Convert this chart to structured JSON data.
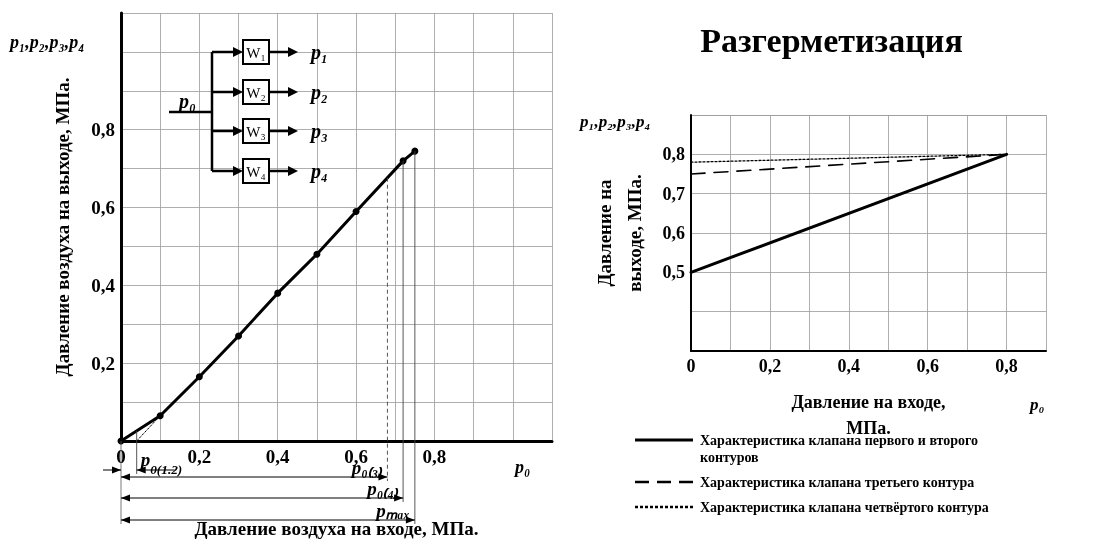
{
  "chart_data": [
    {
      "type": "line",
      "xlabel": "Давление воздуха на входе, МПа.",
      "ylabel": "Давление воздуха на выходе, МПа.",
      "x": [
        0,
        0.1,
        0.2,
        0.3,
        0.4,
        0.5,
        0.6,
        0.72,
        0.75
      ],
      "series": [
        {
          "color": "#000000",
          "values": [
            0,
            0.065,
            0.165,
            0.27,
            0.38,
            0.48,
            0.59,
            0.72,
            0.745
          ]
        },
        {
          "color": "#000000",
          "x": [
            0.04,
            0.1
          ],
          "values": [
            0,
            0.065
          ],
          "line_style": "dotted",
          "marker": "none"
        }
      ],
      "marker": "circle",
      "line_style": "solid",
      "grid": true,
      "xlim": [
        0,
        1.1
      ],
      "ylim": [
        0,
        1.1
      ],
      "xticks": [
        0,
        {
          "value": 0.1,
          "label": null
        },
        {
          "value": 0.2,
          "label": "0,2"
        },
        {
          "value": 0.3,
          "label": null
        },
        {
          "value": 0.4,
          "label": "0,4"
        },
        {
          "value": 0.5,
          "label": null
        },
        {
          "value": 0.6,
          "label": "0,6"
        },
        {
          "value": 0.7,
          "label": null
        },
        {
          "value": 0.8,
          "label": "0,8"
        },
        {
          "value": 0.9,
          "label": null
        },
        {
          "value": 1.0,
          "label": null
        },
        {
          "value": 1.1,
          "label": null
        }
      ],
      "yticks": [
        {
          "value": 0,
          "label": null
        },
        {
          "value": 0.1,
          "label": null
        },
        {
          "value": 0.2,
          "label": "0,2"
        },
        {
          "value": 0.3,
          "label": null
        },
        {
          "value": 0.4,
          "label": "0,4"
        },
        {
          "value": 0.5,
          "label": null
        },
        {
          "value": 0.6,
          "label": "0,6"
        },
        {
          "value": 0.7,
          "label": null
        },
        {
          "value": 0.8,
          "label": "0,8"
        },
        {
          "value": 0.9,
          "label": null
        },
        {
          "value": 1.0,
          "label": null
        },
        {
          "value": 1.1,
          "label": null
        }
      ],
      "ref_lines": [
        {
          "axis": "x",
          "value": 0.04,
          "label": "p$_{0(1.2)}$"
        },
        {
          "axis": "x",
          "value": 0.68,
          "label": "p₀₍₃₎",
          "line_style": "dashed"
        },
        {
          "axis": "x",
          "value": 0.72,
          "label": "p₀₍₄₎"
        },
        {
          "axis": "x",
          "value": 0.75,
          "label": "pₘₐₓ"
        }
      ],
      "annotations": [
        "p₁,p₂,p₃,p₄",
        "p₀",
        "p₀",
        "W₁",
        "W₂",
        "W₃",
        "W₄",
        "p₁",
        "p₂",
        "p₃",
        "p₄"
      ]
    },
    {
      "type": "line",
      "title": "Разгерметизация",
      "xlabel": "Давление на входе, МПа.",
      "ylabel": "Давление на выходе, МПа.",
      "x": [
        0,
        0.8
      ],
      "series": [
        {
          "name": "Характеристика клапана первого и второго контуров",
          "color": "#000000",
          "values": [
            0.5,
            0.8
          ],
          "line_style": "solid"
        },
        {
          "name": "Характеристика клапана третьего контура",
          "color": "#000000",
          "values": [
            0.75,
            0.8
          ],
          "line_style": "dashed"
        },
        {
          "name": "Характеристика клапана четвёртого контура",
          "color": "#000000",
          "values": [
            0.78,
            0.8
          ],
          "line_style": "dotted"
        }
      ],
      "marker": "none",
      "grid": true,
      "legend": "bottom",
      "xlim": [
        0,
        0.9
      ],
      "ylim": [
        0.3,
        0.9
      ],
      "xticks": [
        0,
        {
          "value": 0.1,
          "label": null
        },
        {
          "value": 0.2,
          "label": "0,2"
        },
        {
          "value": 0.3,
          "label": null
        },
        {
          "value": 0.4,
          "label": "0,4"
        },
        {
          "value": 0.5,
          "label": null
        },
        {
          "value": 0.6,
          "label": "0,6"
        },
        {
          "value": 0.7,
          "label": null
        },
        {
          "value": 0.8,
          "label": "0,8"
        },
        {
          "value": 0.9,
          "label": null
        }
      ],
      "yticks": [
        {
          "value": 0.3,
          "label": null
        },
        {
          "value": 0.4,
          "label": null
        },
        {
          "value": 0.5,
          "label": "0,5"
        },
        {
          "value": 0.6,
          "label": "0,6"
        },
        {
          "value": 0.7,
          "label": "0,7"
        },
        {
          "value": 0.8,
          "label": "0,8"
        },
        {
          "value": 0.9,
          "label": null
        }
      ],
      "annotations": [
        "p₁,p₂,p₃,p₄",
        "p₀"
      ]
    }
  ]
}
